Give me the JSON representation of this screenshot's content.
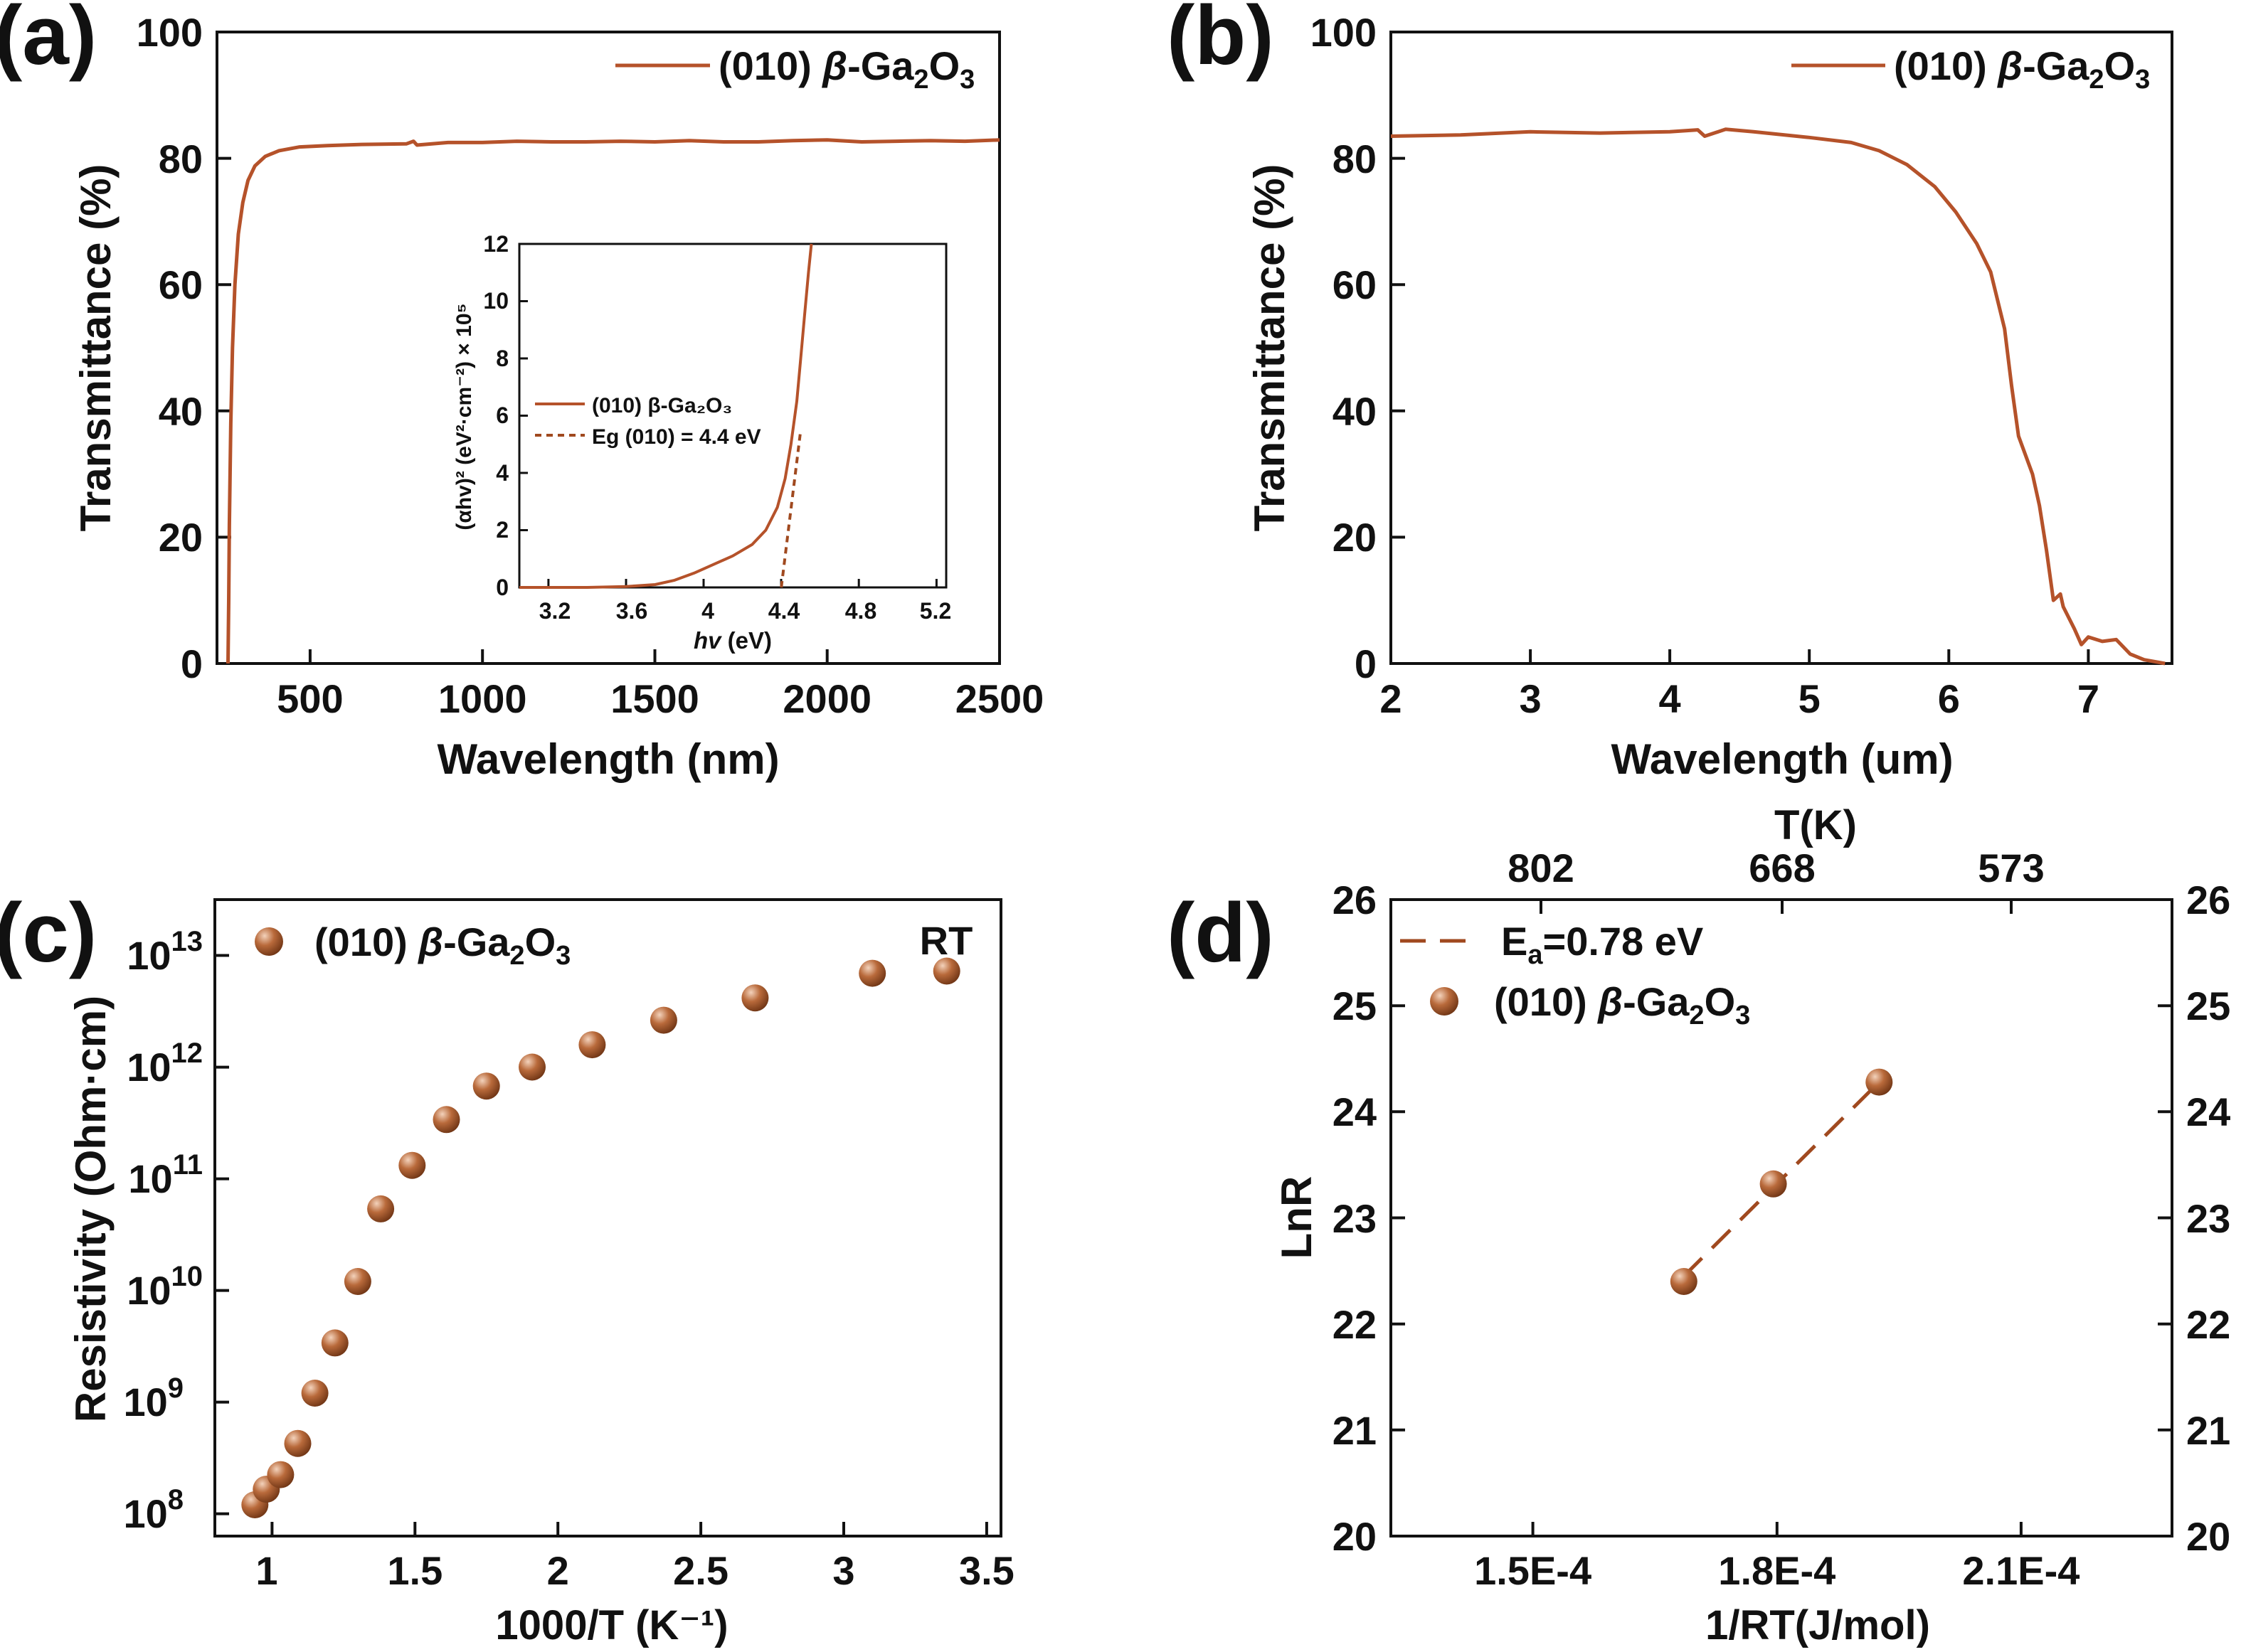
{
  "colors": {
    "curve": "#b5522a",
    "marker": "#a55326",
    "marker_highlight": "#f3d2bb",
    "axes": "#111111"
  },
  "chart_data": [
    {
      "id": "a",
      "panel_label": "(a)",
      "type": "line",
      "xlabel": "Wavelength (nm)",
      "ylabel": "Transmittance (%)",
      "xlim": [
        230,
        2500
      ],
      "ylim": [
        0,
        100
      ],
      "xticks": [
        500,
        1000,
        1500,
        2000,
        2500
      ],
      "yticks": [
        0,
        20,
        40,
        60,
        80,
        100
      ],
      "legend": {
        "position": "top-right",
        "sample": "(010) ",
        "beta": "β",
        "formula": "-Ga",
        "sub1": "2",
        "mid": "O",
        "sub2": "3"
      },
      "series": [
        {
          "name": "(010) β-Ga2O3",
          "points": [
            [
              262,
              0
            ],
            [
              264,
              10
            ],
            [
              266,
              22
            ],
            [
              270,
              38
            ],
            [
              275,
              50
            ],
            [
              282,
              60
            ],
            [
              292,
              68
            ],
            [
              305,
              73
            ],
            [
              320,
              76.5
            ],
            [
              340,
              78.8
            ],
            [
              370,
              80.3
            ],
            [
              410,
              81.2
            ],
            [
              470,
              81.8
            ],
            [
              550,
              82.0
            ],
            [
              650,
              82.2
            ],
            [
              780,
              82.3
            ],
            [
              800,
              82.7
            ],
            [
              810,
              82.1
            ],
            [
              900,
              82.5
            ],
            [
              1000,
              82.5
            ],
            [
              1100,
              82.7
            ],
            [
              1200,
              82.6
            ],
            [
              1300,
              82.6
            ],
            [
              1400,
              82.7
            ],
            [
              1500,
              82.6
            ],
            [
              1600,
              82.8
            ],
            [
              1700,
              82.6
            ],
            [
              1800,
              82.6
            ],
            [
              1900,
              82.8
            ],
            [
              2000,
              82.9
            ],
            [
              2100,
              82.6
            ],
            [
              2200,
              82.7
            ],
            [
              2300,
              82.8
            ],
            [
              2400,
              82.7
            ],
            [
              2500,
              82.9
            ]
          ]
        }
      ],
      "inset": {
        "xlabel_italic": "hv",
        "xlabel_rest": " (eV)",
        "ylabel": "(αhv)² (eV²·cm⁻²) × 10⁵",
        "xlim": [
          3.05,
          5.25
        ],
        "ylim": [
          0,
          12
        ],
        "xticks": [
          3.2,
          3.6,
          4.0,
          4.4,
          4.8,
          5.2
        ],
        "yticks": [
          0,
          2,
          4,
          6,
          8,
          10,
          12
        ],
        "legend": [
          {
            "label": "(010) β-Ga₂O₃",
            "style": "solid"
          },
          {
            "label": "Eg (010) = 4.4 eV",
            "style": "dashed"
          }
        ],
        "series": [
          {
            "name": "(010) β-Ga2O3",
            "points": [
              [
                3.05,
                0
              ],
              [
                3.4,
                0
              ],
              [
                3.6,
                0.03
              ],
              [
                3.75,
                0.1
              ],
              [
                3.85,
                0.25
              ],
              [
                3.95,
                0.5
              ],
              [
                4.05,
                0.8
              ],
              [
                4.15,
                1.1
              ],
              [
                4.25,
                1.5
              ],
              [
                4.32,
                2.0
              ],
              [
                4.38,
                2.8
              ],
              [
                4.42,
                3.8
              ],
              [
                4.45,
                5.0
              ],
              [
                4.48,
                6.5
              ],
              [
                4.5,
                8.0
              ],
              [
                4.52,
                9.5
              ],
              [
                4.54,
                11.0
              ],
              [
                4.555,
                12
              ]
            ]
          },
          {
            "name": "Eg (010) = 4.4 eV",
            "points": [
              [
                4.4,
                0
              ],
              [
                4.5,
                5.5
              ]
            ]
          }
        ]
      }
    },
    {
      "id": "b",
      "panel_label": "(b)",
      "type": "line",
      "xlabel": "Wavelength (um)",
      "ylabel": "Transmittance (%)",
      "xlim": [
        2,
        7.6
      ],
      "ylim": [
        0,
        100
      ],
      "xticks": [
        2,
        3,
        4,
        5,
        6,
        7
      ],
      "yticks": [
        0,
        20,
        40,
        60,
        80,
        100
      ],
      "legend": {
        "position": "top-right",
        "sample": "(010) ",
        "beta": "β",
        "formula": "-Ga",
        "sub1": "2",
        "mid": "O",
        "sub2": "3"
      },
      "series": [
        {
          "name": "(010) β-Ga2O3",
          "points": [
            [
              2,
              83.5
            ],
            [
              2.5,
              83.7
            ],
            [
              3,
              84.2
            ],
            [
              3.5,
              84.0
            ],
            [
              4,
              84.2
            ],
            [
              4.2,
              84.5
            ],
            [
              4.25,
              83.5
            ],
            [
              4.4,
              84.6
            ],
            [
              4.6,
              84.2
            ],
            [
              5,
              83.3
            ],
            [
              5.3,
              82.5
            ],
            [
              5.5,
              81.2
            ],
            [
              5.7,
              79
            ],
            [
              5.9,
              75.5
            ],
            [
              6.05,
              71.5
            ],
            [
              6.2,
              66.5
            ],
            [
              6.3,
              62
            ],
            [
              6.4,
              53
            ],
            [
              6.45,
              44
            ],
            [
              6.5,
              36
            ],
            [
              6.6,
              30
            ],
            [
              6.65,
              25
            ],
            [
              6.7,
              18
            ],
            [
              6.75,
              10
            ],
            [
              6.8,
              11
            ],
            [
              6.82,
              9
            ],
            [
              6.9,
              5.5
            ],
            [
              6.95,
              3
            ],
            [
              7.0,
              4.2
            ],
            [
              7.1,
              3.5
            ],
            [
              7.2,
              3.8
            ],
            [
              7.3,
              1.5
            ],
            [
              7.4,
              0.6
            ],
            [
              7.5,
              0.2
            ],
            [
              7.55,
              0
            ]
          ]
        }
      ]
    },
    {
      "id": "c",
      "panel_label": "(c)",
      "type": "scatter",
      "xlabel": "1000/T (K⁻¹)",
      "ylabel": "Resistivity (Ohm·cm)",
      "yscale": "log",
      "xlim": [
        0.8,
        3.55
      ],
      "ylim_log10": [
        7.8,
        13.5
      ],
      "xticks": [
        1.0,
        1.5,
        2.0,
        2.5,
        3.0,
        3.5
      ],
      "ytick_exponents": [
        8,
        9,
        10,
        11,
        12,
        13
      ],
      "ytick_base": "10",
      "annotation": "RT",
      "legend": {
        "position": "top-left",
        "sample": "(010) ",
        "beta": "β",
        "formula": "-Ga",
        "sub1": "2",
        "mid": "O",
        "sub2": "3"
      },
      "series": [
        {
          "name": "(010) β-Ga2O3",
          "points": [
            [
              0.94,
              8.08
            ],
            [
              0.98,
              8.22
            ],
            [
              1.03,
              8.35
            ],
            [
              1.09,
              8.63
            ],
            [
              1.15,
              9.08
            ],
            [
              1.22,
              9.53
            ],
            [
              1.3,
              10.08
            ],
            [
              1.38,
              10.73
            ],
            [
              1.49,
              11.12
            ],
            [
              1.61,
              11.53
            ],
            [
              1.75,
              11.83
            ],
            [
              1.91,
              12.0
            ],
            [
              2.12,
              12.2
            ],
            [
              2.37,
              12.42
            ],
            [
              2.69,
              12.62
            ],
            [
              3.1,
              12.84
            ],
            [
              3.36,
              12.86
            ]
          ]
        }
      ]
    },
    {
      "id": "d",
      "panel_label": "(d)",
      "type": "scatter",
      "xlabel": "1/RT(J/mol)",
      "ylabel": "LnR",
      "top_axis_title": "T(K)",
      "xlim": [
        0.000132,
        0.000228
      ],
      "ylim": [
        20,
        26
      ],
      "xticks": [
        0.00015,
        0.00018,
        0.00021
      ],
      "xtick_labels": [
        "1.5E-4",
        "1.8E-4",
        "2.1E-4"
      ],
      "top_ticks": [
        802,
        668,
        573
      ],
      "yticks": [
        20,
        21,
        22,
        23,
        24,
        25,
        26
      ],
      "legend": {
        "position": "top-left",
        "fit_main": "E",
        "fit_sub": "a",
        "fit_rest": "=0.78 eV",
        "sample": "(010) ",
        "beta": "β",
        "formula": "-Ga",
        "sub1": "2",
        "mid": "O",
        "sub2": "3"
      },
      "series": [
        {
          "name": "(010) β-Ga2O3",
          "points": [
            [
              0.000168,
              22.4
            ],
            [
              0.000179,
              23.32
            ],
            [
              0.000192,
              24.28
            ]
          ]
        },
        {
          "name": "Ea=0.78 eV",
          "points": [
            [
              0.000168,
              22.45
            ],
            [
              0.000192,
              24.28
            ]
          ]
        }
      ]
    }
  ]
}
